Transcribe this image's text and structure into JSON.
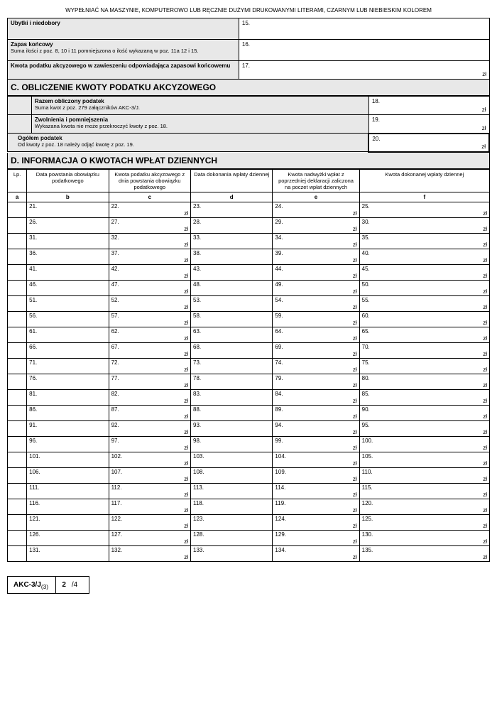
{
  "top_instruction": "WYPEŁNIAĆ NA MASZYNIE, KOMPUTEROWO LUB RĘCZNIE DUŻYMI DRUKOWANYMI LITERAMI, CZARNYM LUB NIEBIESKIM KOLOREM",
  "upper": {
    "r1_label": "Ubytki i niedobory",
    "r1_field": "15.",
    "r2_label": "Zapas końcowy",
    "r2_sub": "Suma ilości z poz. 8, 10 i 11 pomniejszona o ilość wykazaną w poz. 11a 12 i 15.",
    "r2_field": "16.",
    "r3_label": "Kwota podatku akcyzowego w zawieszeniu odpowiadająca zapasowi końcowemu",
    "r3_field": "17.",
    "zl": "zł"
  },
  "sectionC": {
    "title": "C. OBLICZENIE KWOTY PODATKU AKCYZOWEGO",
    "r1_label": "Razem obliczony podatek",
    "r1_sub": "Suma kwot z poz. 279  załączników AKC-3/J.",
    "r1_field": "18.",
    "r2_label": "Zwolnienia i pomniejszenia",
    "r2_sub": "Wykazana kwota nie może przekroczyć kwoty z poz. 18.",
    "r2_field": "19.",
    "r3_label": "Ogółem podatek",
    "r3_sub": "Od kwoty z poz. 18 należy odjąć kwotę z poz. 19.",
    "r3_field": "20.",
    "zl": "zł"
  },
  "sectionD": {
    "title": "D. INFORMACJA O KWOTACH WPŁAT DZIENNYCH",
    "headers": {
      "lp": "Lp.",
      "b": "Data powstania obowiązku podatkowego",
      "c": "Kwota podatku akcyzowego z dnia powstania obowiązku podatkowego",
      "d": "Data dokonania wpłaty dziennej",
      "e": "Kwota nadwyżki wpłat z poprzedniej deklaracji zaliczona na poczet wpłat dziennych",
      "f": "Kwota dokonanej wpłaty dziennej"
    },
    "letters": {
      "a": "a",
      "b": "b",
      "c": "c",
      "d": "d",
      "e": "e",
      "f": "f"
    },
    "zl": "zł",
    "rows": [
      {
        "b": "21.",
        "c": "22.",
        "d": "23.",
        "e": "24.",
        "f": "25."
      },
      {
        "b": "26.",
        "c": "27.",
        "d": "28.",
        "e": "29.",
        "f": "30."
      },
      {
        "b": "31.",
        "c": "32.",
        "d": "33.",
        "e": "34.",
        "f": "35."
      },
      {
        "b": "36.",
        "c": "37.",
        "d": "38.",
        "e": "39.",
        "f": "40."
      },
      {
        "b": "41.",
        "c": "42.",
        "d": "43.",
        "e": "44.",
        "f": "45."
      },
      {
        "b": "46.",
        "c": "47.",
        "d": "48.",
        "e": "49.",
        "f": "50."
      },
      {
        "b": "51.",
        "c": "52.",
        "d": "53.",
        "e": "54.",
        "f": "55."
      },
      {
        "b": "56.",
        "c": "57.",
        "d": "58.",
        "e": "59.",
        "f": "60."
      },
      {
        "b": "61.",
        "c": "62.",
        "d": "63.",
        "e": "64.",
        "f": "65."
      },
      {
        "b": "66.",
        "c": "67.",
        "d": "68.",
        "e": "69.",
        "f": "70."
      },
      {
        "b": "71.",
        "c": "72.",
        "d": "73.",
        "e": "74.",
        "f": "75."
      },
      {
        "b": "76.",
        "c": "77.",
        "d": "78.",
        "e": "79.",
        "f": "80."
      },
      {
        "b": "81.",
        "c": "82.",
        "d": "83.",
        "e": "84.",
        "f": "85."
      },
      {
        "b": "86.",
        "c": "87.",
        "d": "88.",
        "e": "89.",
        "f": "90."
      },
      {
        "b": "91.",
        "c": "92.",
        "d": "93.",
        "e": "94.",
        "f": "95."
      },
      {
        "b": "96.",
        "c": "97.",
        "d": "98.",
        "e": "99.",
        "f": "100."
      },
      {
        "b": "101.",
        "c": "102.",
        "d": "103.",
        "e": "104.",
        "f": "105."
      },
      {
        "b": "106.",
        "c": "107.",
        "d": "108.",
        "e": "109.",
        "f": "110."
      },
      {
        "b": "111.",
        "c": "112.",
        "d": "113.",
        "e": "114.",
        "f": "115."
      },
      {
        "b": "116.",
        "c": "117.",
        "d": "118.",
        "e": "119.",
        "f": "120."
      },
      {
        "b": "121.",
        "c": "122.",
        "d": "123.",
        "e": "124.",
        "f": "125."
      },
      {
        "b": "126.",
        "c": "127.",
        "d": "128.",
        "e": "129.",
        "f": "130."
      },
      {
        "b": "131.",
        "c": "132.",
        "d": "133.",
        "e": "134.",
        "f": "135."
      }
    ]
  },
  "footer": {
    "form": "AKC-3/J",
    "sub": "(3)",
    "page": "2",
    "total": "/4"
  },
  "colwidths": {
    "a": "4%",
    "b": "17%",
    "c": "17%",
    "d": "17%",
    "e": "18%",
    "f": "27%"
  }
}
